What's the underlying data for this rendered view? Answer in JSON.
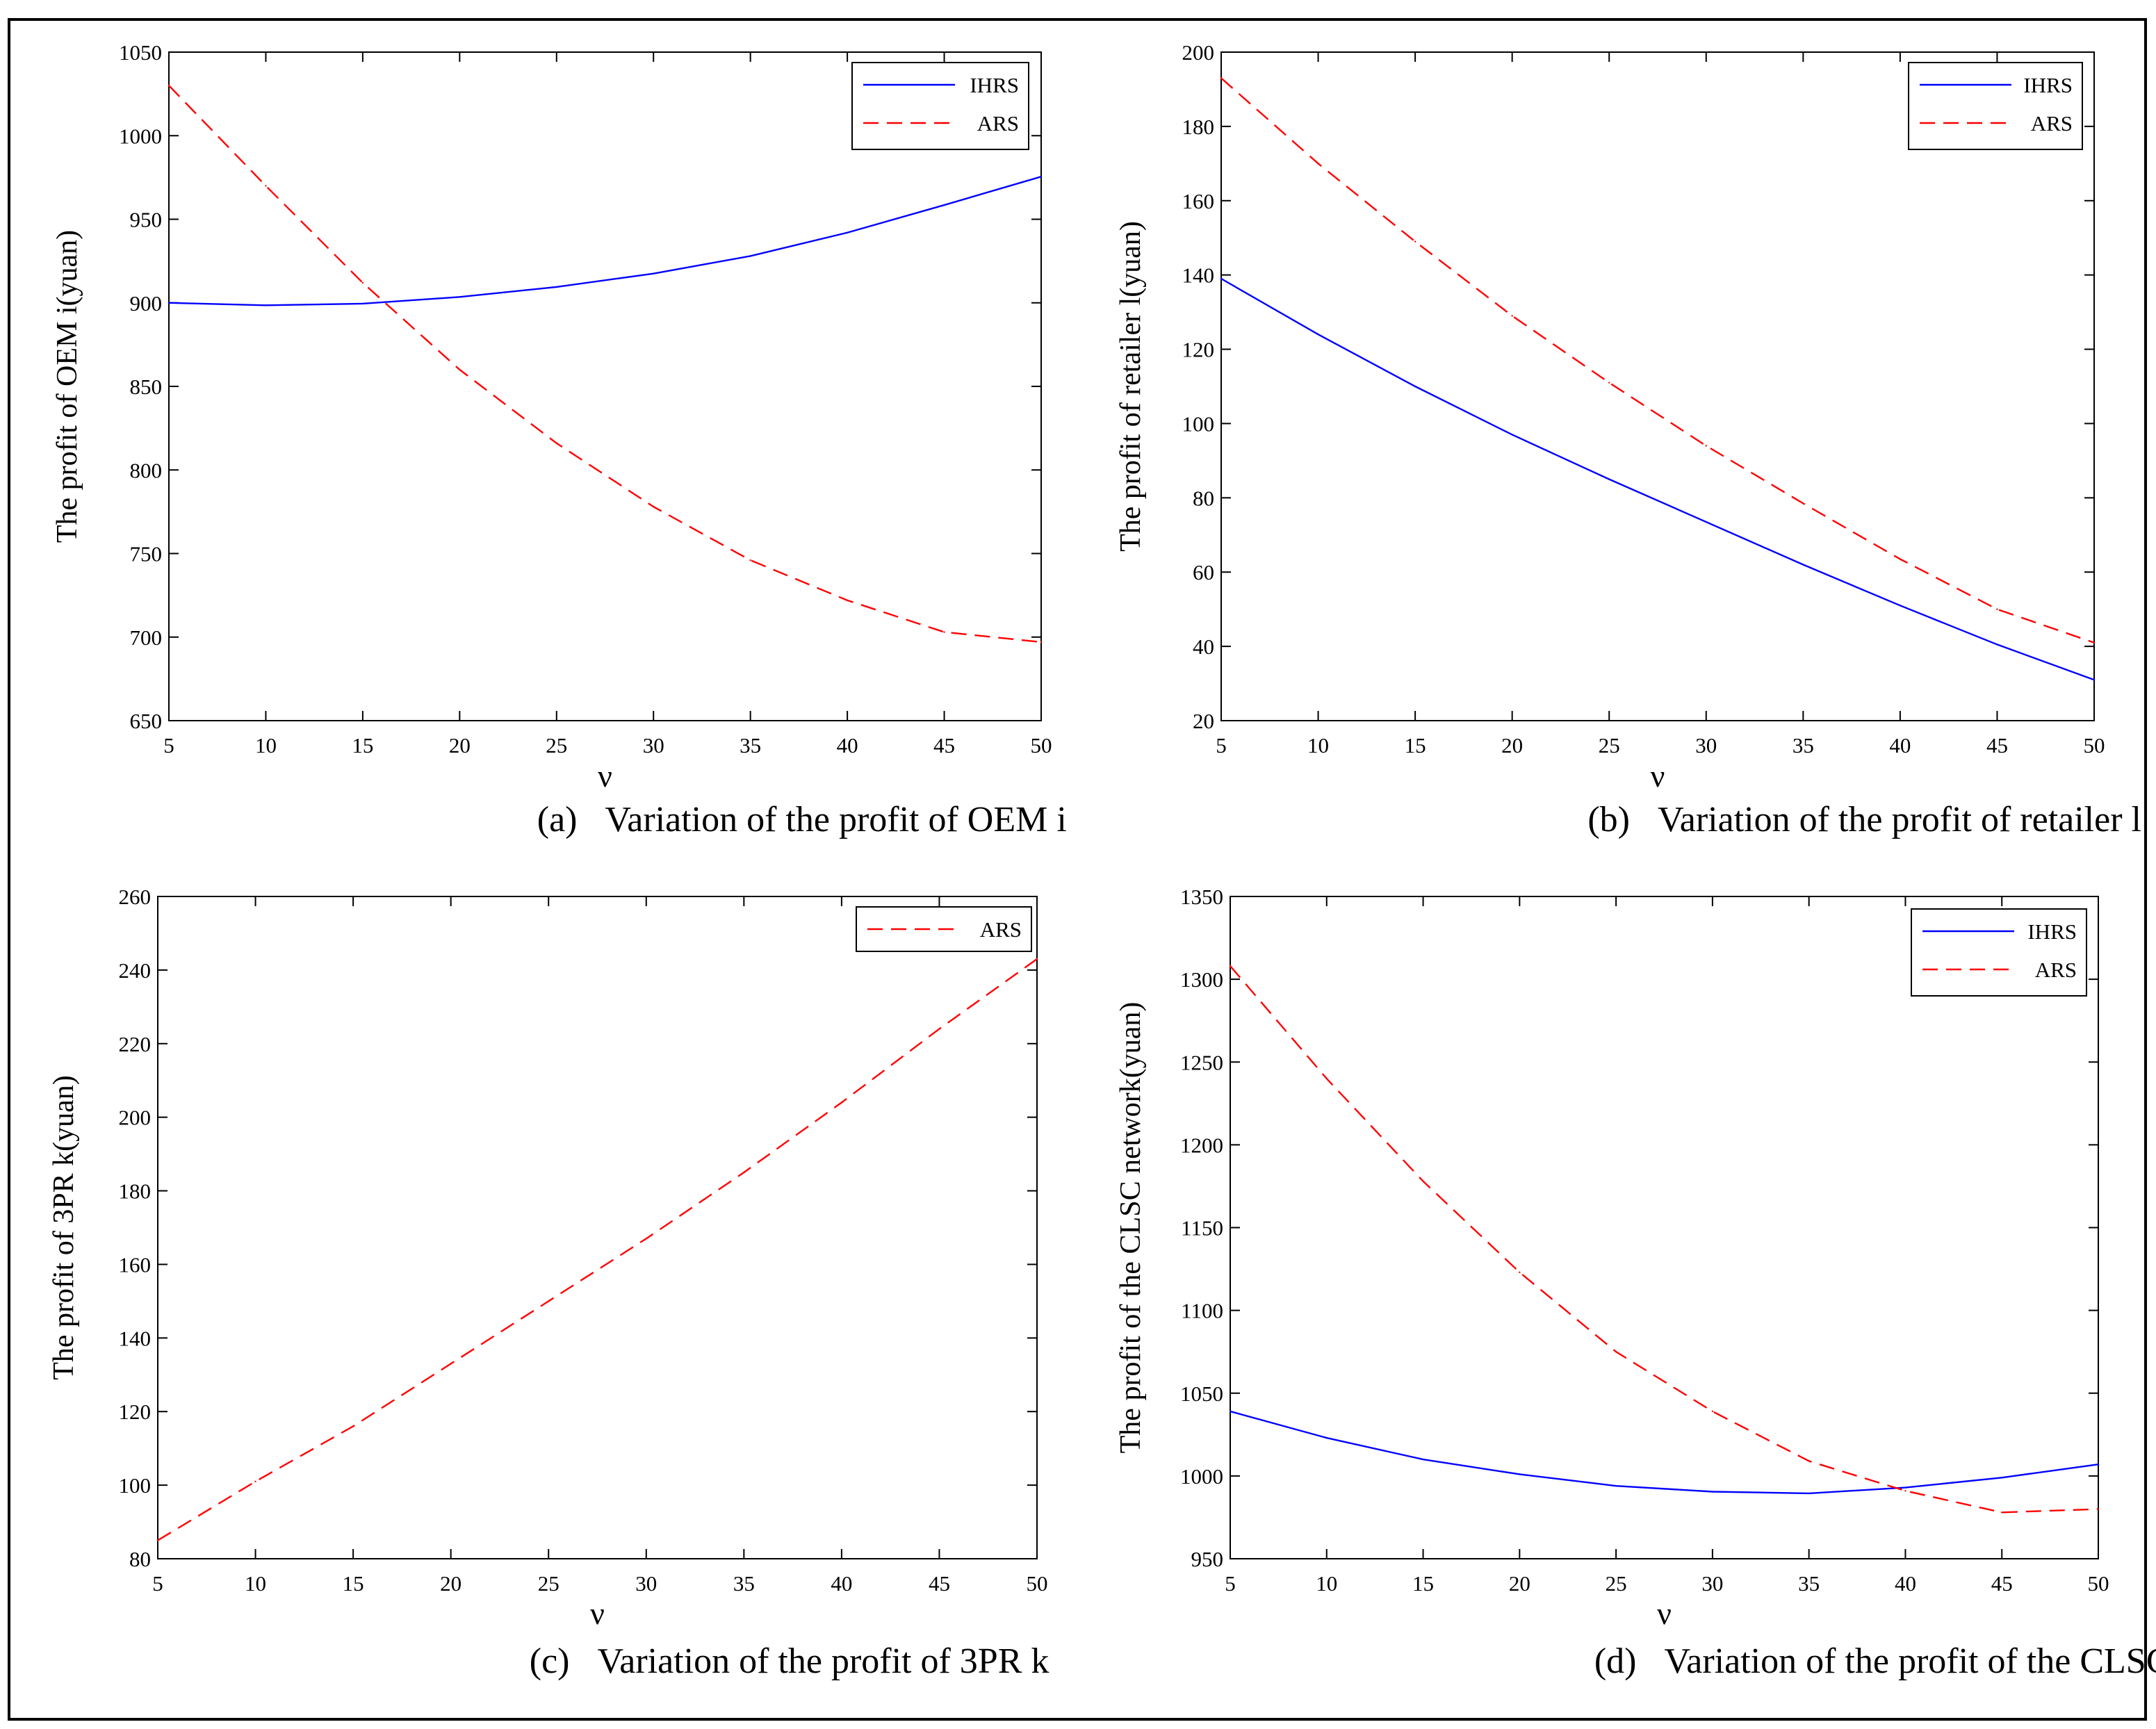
{
  "colors": {
    "ihrs": "#0000ff",
    "ars": "#ff0000",
    "axis": "#000000",
    "background": "#ffffff"
  },
  "chart_data": [
    {
      "type": "line",
      "caption_label": "(a)",
      "caption_text": "Variation of the profit of OEM i",
      "xlabel": "ν",
      "ylabel": "The profit of OEM i(yuan)",
      "x": [
        5,
        10,
        15,
        20,
        25,
        30,
        35,
        40,
        45,
        50
      ],
      "xticks": [
        5,
        10,
        15,
        20,
        25,
        30,
        35,
        40,
        45,
        50
      ],
      "xlim": [
        5,
        50
      ],
      "ylim": [
        650,
        1050
      ],
      "yticks": [
        650,
        700,
        750,
        800,
        850,
        900,
        950,
        1000,
        1050
      ],
      "legend_position": "top-right",
      "series": [
        {
          "name": "IHRS",
          "style": "solid",
          "color": "#0000ff",
          "values": [
            900,
            898.5,
            899.5,
            903.5,
            909.5,
            917.5,
            928,
            942,
            958.5,
            975.5
          ]
        },
        {
          "name": "ARS",
          "style": "dashed",
          "color": "#ff0000",
          "values": [
            1030,
            970,
            912,
            860,
            816,
            778,
            746,
            722,
            703,
            697
          ]
        }
      ]
    },
    {
      "type": "line",
      "caption_label": "(b)",
      "caption_text": "Variation of the profit of retailer l",
      "xlabel": "ν",
      "ylabel": "The profit of retailer l(yuan)",
      "x": [
        5,
        10,
        15,
        20,
        25,
        30,
        35,
        40,
        45,
        50
      ],
      "xticks": [
        5,
        10,
        15,
        20,
        25,
        30,
        35,
        40,
        45,
        50
      ],
      "xlim": [
        5,
        50
      ],
      "ylim": [
        20,
        200
      ],
      "yticks": [
        20,
        40,
        60,
        80,
        100,
        120,
        140,
        160,
        180,
        200
      ],
      "legend_position": "top-right",
      "series": [
        {
          "name": "IHRS",
          "style": "solid",
          "color": "#0000ff",
          "values": [
            139,
            124,
            110,
            97,
            85,
            73.5,
            62,
            51,
            40.5,
            31
          ]
        },
        {
          "name": "ARS",
          "style": "dashed",
          "color": "#ff0000",
          "values": [
            193,
            170,
            149,
            129,
            111,
            94,
            78.5,
            63.5,
            50,
            41
          ]
        }
      ]
    },
    {
      "type": "line",
      "caption_label": "(c)",
      "caption_text": "Variation of the profit of 3PR k",
      "xlabel": "ν",
      "ylabel": "The profit of 3PR k(yuan)",
      "x": [
        5,
        10,
        15,
        20,
        25,
        30,
        35,
        40,
        45,
        50
      ],
      "xticks": [
        5,
        10,
        15,
        20,
        25,
        30,
        35,
        40,
        45,
        50
      ],
      "xlim": [
        5,
        50
      ],
      "ylim": [
        80,
        260
      ],
      "yticks": [
        80,
        100,
        120,
        140,
        160,
        180,
        200,
        220,
        240,
        260
      ],
      "legend_position": "top-right",
      "series": [
        {
          "name": "ARS",
          "style": "dashed",
          "color": "#ff0000",
          "values": [
            85,
            101,
            116,
            133,
            150,
            167,
            185,
            204,
            224,
            243
          ]
        }
      ]
    },
    {
      "type": "line",
      "caption_label": "(d)",
      "caption_text": "Variation of the profit of the CLSC network",
      "xlabel": "ν",
      "ylabel": "The profit of the CLSC network(yuan)",
      "x": [
        5,
        10,
        15,
        20,
        25,
        30,
        35,
        40,
        45,
        50
      ],
      "xticks": [
        5,
        10,
        15,
        20,
        25,
        30,
        35,
        40,
        45,
        50
      ],
      "xlim": [
        5,
        50
      ],
      "ylim": [
        950,
        1350
      ],
      "yticks": [
        950,
        1000,
        1050,
        1100,
        1150,
        1200,
        1250,
        1300,
        1350
      ],
      "legend_position": "top-right",
      "series": [
        {
          "name": "IHRS",
          "style": "solid",
          "color": "#0000ff",
          "values": [
            1039,
            1023,
            1010,
            1001,
            994,
            990.5,
            989.5,
            993,
            999,
            1007
          ]
        },
        {
          "name": "ARS",
          "style": "dashed",
          "color": "#ff0000",
          "values": [
            1308,
            1240,
            1178,
            1123,
            1075,
            1039,
            1009,
            991,
            978,
            980
          ]
        }
      ]
    }
  ]
}
